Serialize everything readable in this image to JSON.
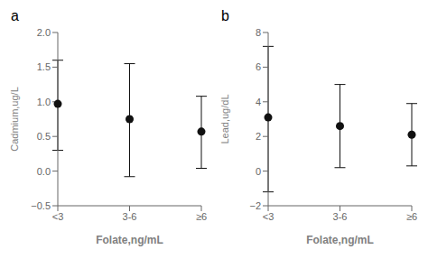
{
  "chart_data": [
    {
      "type": "scatter",
      "title": "a",
      "categories": [
        "<3",
        "3-6",
        "≥6"
      ],
      "values": [
        0.97,
        0.75,
        0.57
      ],
      "upper": [
        1.6,
        1.55,
        1.08
      ],
      "lower": [
        0.3,
        -0.08,
        0.04
      ],
      "xlabel": "Folate,ng/mL",
      "ylabel": "Cadmium,ug/L",
      "ylim": [
        -0.5,
        2.0
      ],
      "yticks": [
        {
          "value": -0.5,
          "label": "−0.5"
        },
        {
          "value": 0.0,
          "label": "0.0"
        },
        0.5,
        {
          "value": 1.0,
          "label": "1.0"
        },
        1.5,
        {
          "value": 2.0,
          "label": "2.0"
        }
      ],
      "color": "#111111"
    },
    {
      "type": "scatter",
      "title": "b",
      "categories": [
        "<3",
        "3-6",
        "≥6"
      ],
      "values": [
        3.1,
        2.6,
        2.1
      ],
      "upper": [
        7.2,
        5.0,
        3.9
      ],
      "lower": [
        -1.2,
        0.2,
        0.3
      ],
      "xlabel": "Folate,ng/mL",
      "ylabel": "Lead,ug/dL",
      "ylim": [
        -2,
        8
      ],
      "yticks": [
        {
          "value": -2,
          "label": "−2"
        },
        0,
        2,
        4,
        6,
        8
      ],
      "color": "#111111"
    }
  ]
}
